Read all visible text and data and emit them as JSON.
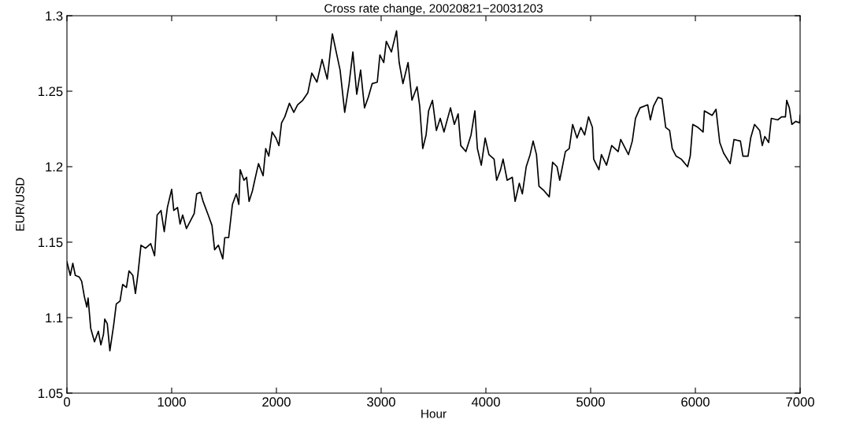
{
  "chart_data": {
    "type": "line",
    "title": "Cross rate change, 20020821−20031203",
    "xlabel": "Hour",
    "ylabel": "EUR/USD",
    "xlim": [
      0,
      7000
    ],
    "xticks": [
      0,
      1000,
      2000,
      3000,
      4000,
      5000,
      6000,
      7000
    ],
    "ylim": [
      1.05,
      1.3
    ],
    "yticks": [
      1.05,
      1.1,
      1.15,
      1.2,
      1.25,
      1.3
    ],
    "grid": false,
    "legend": false,
    "series": [
      {
        "color": "#000000",
        "x": [
          0,
          32,
          56,
          80,
          117,
          141,
          166,
          190,
          202,
          227,
          263,
          300,
          324,
          349,
          361,
          385,
          410,
          446,
          471,
          507,
          532,
          568,
          593,
          629,
          654,
          678,
          707,
          751,
          800,
          837,
          861,
          898,
          929,
          959,
          1000,
          1020,
          1056,
          1080,
          1105,
          1141,
          1178,
          1215,
          1239,
          1276,
          1300,
          1349,
          1385,
          1410,
          1446,
          1488,
          1507,
          1544,
          1580,
          1617,
          1641,
          1654,
          1690,
          1715,
          1739,
          1771,
          1793,
          1829,
          1873,
          1898,
          1927,
          1959,
          1995,
          2024,
          2049,
          2080,
          2124,
          2166,
          2202,
          2251,
          2300,
          2338,
          2387,
          2436,
          2485,
          2534,
          2571,
          2608,
          2652,
          2694,
          2730,
          2767,
          2804,
          2841,
          2877,
          2914,
          2963,
          2988,
          3025,
          3049,
          3098,
          3147,
          3172,
          3208,
          3257,
          3294,
          3343,
          3368,
          3397,
          3429,
          3453,
          3490,
          3527,
          3564,
          3600,
          3662,
          3699,
          3735,
          3760,
          3809,
          3858,
          3895,
          3919,
          3956,
          3993,
          4029,
          4078,
          4103,
          4140,
          4164,
          4203,
          4252,
          4279,
          4319,
          4348,
          4385,
          4422,
          4451,
          4483,
          4507,
          4556,
          4605,
          4637,
          4679,
          4705,
          4759,
          4796,
          4828,
          4870,
          4907,
          4943,
          4980,
          5017,
          5029,
          5079,
          5103,
          5152,
          5201,
          5263,
          5287,
          5361,
          5398,
          5428,
          5472,
          5545,
          5570,
          5600,
          5644,
          5681,
          5717,
          5754,
          5779,
          5816,
          5865,
          5926,
          5951,
          5975,
          6025,
          6074,
          6086,
          6160,
          6197,
          6233,
          6270,
          6332,
          6369,
          6430,
          6454,
          6503,
          6528,
          6565,
          6614,
          6639,
          6663,
          6700,
          6725,
          6786,
          6823,
          6860,
          6872,
          6897,
          6921,
          6958,
          6995,
          7000
        ],
        "values": [
          1.137,
          1.128,
          1.136,
          1.128,
          1.127,
          1.124,
          1.114,
          1.107,
          1.113,
          1.093,
          1.084,
          1.091,
          1.082,
          1.089,
          1.099,
          1.096,
          1.078,
          1.095,
          1.109,
          1.111,
          1.122,
          1.12,
          1.131,
          1.128,
          1.116,
          1.129,
          1.148,
          1.146,
          1.149,
          1.141,
          1.168,
          1.171,
          1.157,
          1.173,
          1.185,
          1.171,
          1.173,
          1.162,
          1.168,
          1.159,
          1.164,
          1.169,
          1.182,
          1.183,
          1.177,
          1.168,
          1.161,
          1.145,
          1.148,
          1.139,
          1.153,
          1.153,
          1.175,
          1.182,
          1.175,
          1.198,
          1.191,
          1.193,
          1.177,
          1.184,
          1.191,
          1.202,
          1.194,
          1.212,
          1.207,
          1.223,
          1.219,
          1.214,
          1.229,
          1.233,
          1.242,
          1.236,
          1.241,
          1.244,
          1.249,
          1.262,
          1.256,
          1.271,
          1.258,
          1.288,
          1.276,
          1.264,
          1.236,
          1.255,
          1.276,
          1.248,
          1.264,
          1.239,
          1.246,
          1.255,
          1.256,
          1.274,
          1.269,
          1.283,
          1.276,
          1.29,
          1.269,
          1.255,
          1.269,
          1.244,
          1.253,
          1.24,
          1.212,
          1.221,
          1.237,
          1.244,
          1.224,
          1.232,
          1.223,
          1.239,
          1.228,
          1.235,
          1.214,
          1.21,
          1.221,
          1.237,
          1.212,
          1.201,
          1.219,
          1.208,
          1.205,
          1.191,
          1.198,
          1.205,
          1.191,
          1.193,
          1.177,
          1.189,
          1.182,
          1.2,
          1.208,
          1.217,
          1.208,
          1.187,
          1.184,
          1.18,
          1.203,
          1.2,
          1.191,
          1.21,
          1.212,
          1.228,
          1.219,
          1.226,
          1.221,
          1.233,
          1.226,
          1.205,
          1.198,
          1.208,
          1.201,
          1.214,
          1.21,
          1.218,
          1.208,
          1.217,
          1.232,
          1.239,
          1.241,
          1.231,
          1.24,
          1.246,
          1.245,
          1.226,
          1.224,
          1.212,
          1.207,
          1.205,
          1.2,
          1.207,
          1.228,
          1.226,
          1.223,
          1.237,
          1.234,
          1.238,
          1.216,
          1.209,
          1.202,
          1.218,
          1.217,
          1.207,
          1.207,
          1.219,
          1.228,
          1.224,
          1.214,
          1.22,
          1.216,
          1.232,
          1.231,
          1.233,
          1.233,
          1.244,
          1.239,
          1.228,
          1.23,
          1.229,
          1.234
        ]
      }
    ]
  }
}
